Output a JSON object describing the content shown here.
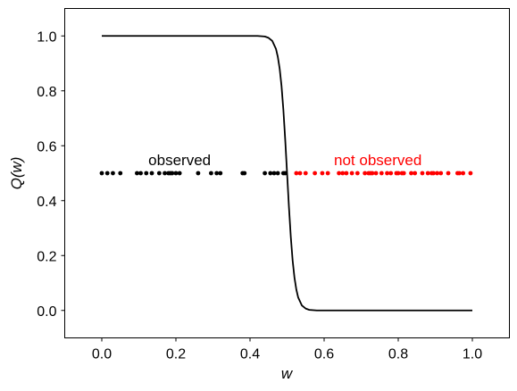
{
  "chart_data": {
    "type": "line",
    "xlabel": "w",
    "ylabel": "Q(w)",
    "xlim": [
      -0.1,
      1.1
    ],
    "ylim": [
      -0.1,
      1.1
    ],
    "xticks": [
      "0.0",
      "0.2",
      "0.4",
      "0.6",
      "0.8",
      "1.0"
    ],
    "yticks": [
      "0.0",
      "0.2",
      "0.4",
      "0.6",
      "0.8",
      "1.0"
    ],
    "grid": false,
    "colors": {
      "curve": "#000000",
      "observed": "#000000",
      "not_observed": "#ff0000"
    },
    "curve": {
      "x": [
        0.0,
        0.05,
        0.1,
        0.15,
        0.2,
        0.25,
        0.3,
        0.35,
        0.4,
        0.42,
        0.44,
        0.45,
        0.46,
        0.47,
        0.475,
        0.48,
        0.485,
        0.49,
        0.495,
        0.5,
        0.505,
        0.51,
        0.515,
        0.52,
        0.525,
        0.53,
        0.54,
        0.55,
        0.56,
        0.58,
        0.6,
        0.65,
        0.7,
        0.75,
        0.8,
        0.85,
        0.9,
        0.95,
        1.0
      ],
      "y": [
        1.0,
        1.0,
        1.0,
        1.0,
        1.0,
        1.0,
        1.0,
        1.0,
        1.0,
        1.0,
        0.998,
        0.993,
        0.982,
        0.953,
        0.924,
        0.881,
        0.818,
        0.731,
        0.622,
        0.5,
        0.378,
        0.269,
        0.182,
        0.119,
        0.076,
        0.047,
        0.018,
        0.007,
        0.002,
        0.0,
        0.0,
        0.0,
        0.0,
        0.0,
        0.0,
        0.0,
        0.0,
        0.0,
        0.0
      ]
    },
    "series": [
      {
        "name": "observed",
        "y": 0.5,
        "x": [
          0.0,
          0.015,
          0.03,
          0.05,
          0.095,
          0.105,
          0.12,
          0.135,
          0.155,
          0.17,
          0.18,
          0.185,
          0.19,
          0.2,
          0.21,
          0.26,
          0.295,
          0.31,
          0.32,
          0.38,
          0.385,
          0.44,
          0.455,
          0.465,
          0.475,
          0.49,
          0.495
        ]
      },
      {
        "name": "not observed",
        "y": 0.5,
        "x": [
          0.525,
          0.535,
          0.55,
          0.575,
          0.595,
          0.61,
          0.64,
          0.65,
          0.66,
          0.675,
          0.69,
          0.71,
          0.72,
          0.725,
          0.73,
          0.74,
          0.755,
          0.77,
          0.78,
          0.795,
          0.8,
          0.81,
          0.815,
          0.835,
          0.845,
          0.865,
          0.88,
          0.89,
          0.895,
          0.905,
          0.915,
          0.935,
          0.96,
          0.965,
          0.975,
          0.995
        ]
      }
    ],
    "annotations": [
      {
        "text": "observed",
        "x": 0.21,
        "y": 0.53,
        "color": "#000000"
      },
      {
        "text": "not observed",
        "x": 0.745,
        "y": 0.53,
        "color": "#ff0000"
      }
    ]
  }
}
